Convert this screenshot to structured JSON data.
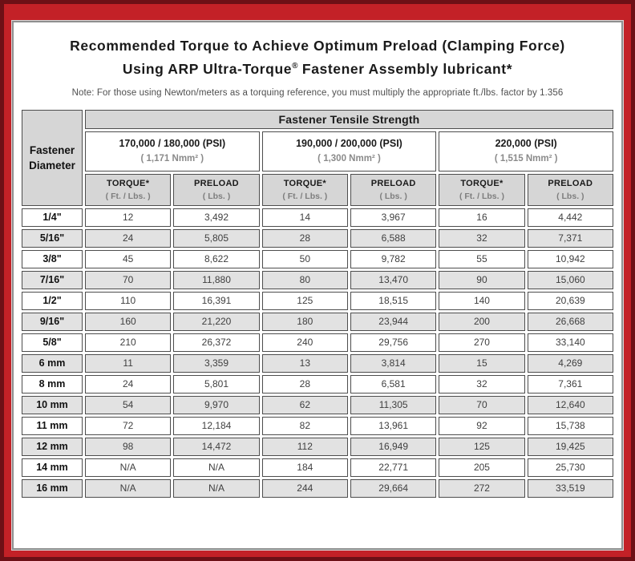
{
  "colors": {
    "frame_red": "#c32127",
    "frame_dark": "#6d1016",
    "header_gray": "#d6d6d6",
    "stripe_gray": "#e2e2e2",
    "grid_line": "#4d4d4d"
  },
  "title": {
    "line1": "Recommended Torque to Achieve Optimum Preload (Clamping Force)",
    "line2_a": "Using ARP Ultra-Torque",
    "line2_reg": "®",
    "line2_b": " Fastener Assembly lubricant*"
  },
  "note": "Note: For those using Newton/meters as a torquing reference, you must multiply the appropriate ft./lbs. factor by 1.356",
  "table": {
    "corner": {
      "line1": "Fastener",
      "line2": "Diameter"
    },
    "tensile_header": "Fastener Tensile Strength",
    "groups": [
      {
        "psi": "170,000 / 180,000 (PSI)",
        "nmm": "( 1,171 Nmm² )"
      },
      {
        "psi": "190,000 / 200,000 (PSI)",
        "nmm": "( 1,300 Nmm² )"
      },
      {
        "psi": "220,000 (PSI)",
        "nmm": "( 1,515 Nmm² )"
      }
    ],
    "columns": {
      "torque_label": "TORQUE*",
      "torque_sub": "( Ft. / Lbs. )",
      "preload_label": "PRELOAD",
      "preload_sub": "( Lbs. )"
    },
    "rows": [
      {
        "diameter": "1/4\"",
        "values": [
          "12",
          "3,492",
          "14",
          "3,967",
          "16",
          "4,442"
        ]
      },
      {
        "diameter": "5/16\"",
        "values": [
          "24",
          "5,805",
          "28",
          "6,588",
          "32",
          "7,371"
        ]
      },
      {
        "diameter": "3/8\"",
        "values": [
          "45",
          "8,622",
          "50",
          "9,782",
          "55",
          "10,942"
        ]
      },
      {
        "diameter": "7/16\"",
        "values": [
          "70",
          "11,880",
          "80",
          "13,470",
          "90",
          "15,060"
        ]
      },
      {
        "diameter": "1/2\"",
        "values": [
          "110",
          "16,391",
          "125",
          "18,515",
          "140",
          "20,639"
        ]
      },
      {
        "diameter": "9/16\"",
        "values": [
          "160",
          "21,220",
          "180",
          "23,944",
          "200",
          "26,668"
        ]
      },
      {
        "diameter": "5/8\"",
        "values": [
          "210",
          "26,372",
          "240",
          "29,756",
          "270",
          "33,140"
        ]
      },
      {
        "diameter": "6 mm",
        "values": [
          "11",
          "3,359",
          "13",
          "3,814",
          "15",
          "4,269"
        ]
      },
      {
        "diameter": "8 mm",
        "values": [
          "24",
          "5,801",
          "28",
          "6,581",
          "32",
          "7,361"
        ]
      },
      {
        "diameter": "10 mm",
        "values": [
          "54",
          "9,970",
          "62",
          "11,305",
          "70",
          "12,640"
        ]
      },
      {
        "diameter": "11 mm",
        "values": [
          "72",
          "12,184",
          "82",
          "13,961",
          "92",
          "15,738"
        ]
      },
      {
        "diameter": "12 mm",
        "values": [
          "98",
          "14,472",
          "112",
          "16,949",
          "125",
          "19,425"
        ]
      },
      {
        "diameter": "14 mm",
        "values": [
          "N/A",
          "N/A",
          "184",
          "22,771",
          "205",
          "25,730"
        ]
      },
      {
        "diameter": "16 mm",
        "values": [
          "N/A",
          "N/A",
          "244",
          "29,664",
          "272",
          "33,519"
        ]
      }
    ]
  }
}
